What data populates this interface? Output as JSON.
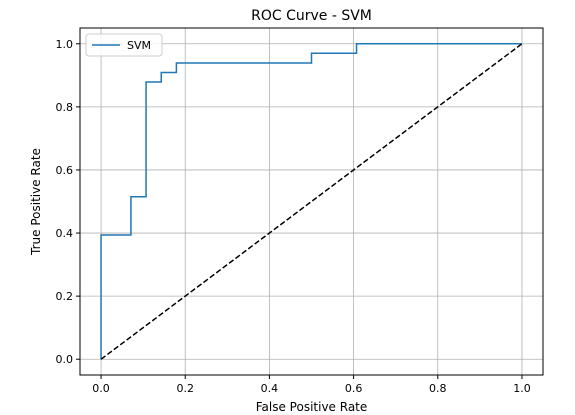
{
  "chart_data": {
    "type": "line",
    "title": "ROC Curve - SVM",
    "xlabel": "False Positive Rate",
    "ylabel": "True Positive Rate",
    "xlim": [
      -0.05,
      1.05
    ],
    "ylim": [
      -0.05,
      1.05
    ],
    "x_ticks": [
      0.0,
      0.2,
      0.4,
      0.6,
      0.8,
      1.0
    ],
    "y_ticks": [
      0.0,
      0.2,
      0.4,
      0.6,
      0.8,
      1.0
    ],
    "x_tick_labels": [
      "0.0",
      "0.2",
      "0.4",
      "0.6",
      "0.8",
      "1.0"
    ],
    "y_tick_labels": [
      "0.0",
      "0.2",
      "0.4",
      "0.6",
      "0.8",
      "1.0"
    ],
    "grid": true,
    "legend_placement": "top-left",
    "series": [
      {
        "name": "SVM",
        "color": "#1f77b4",
        "style": "solid",
        "x": [
          0.0,
          0.0,
          0.071,
          0.071,
          0.107,
          0.107,
          0.143,
          0.143,
          0.179,
          0.179,
          0.5,
          0.5,
          0.607,
          0.607,
          1.0
        ],
        "y": [
          0.0,
          0.394,
          0.394,
          0.515,
          0.515,
          0.879,
          0.879,
          0.909,
          0.909,
          0.939,
          0.939,
          0.97,
          0.97,
          1.0,
          1.0
        ]
      },
      {
        "color": "#000000",
        "style": "dashed",
        "x": [
          0.0,
          1.0
        ],
        "y": [
          0.0,
          1.0
        ]
      }
    ]
  }
}
